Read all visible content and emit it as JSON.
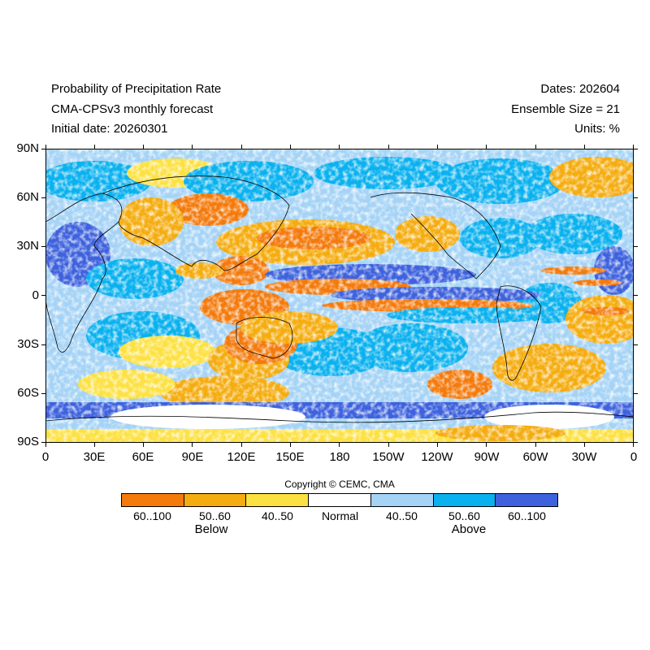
{
  "header": {
    "title": "Probability of Precipitation Rate",
    "model": "CMA-CPSv3 monthly forecast",
    "initial": "Initial date: 20260301",
    "dates": "Dates: 202604",
    "ensemble": "Ensemble Size = 21",
    "units": "Units: %"
  },
  "axes": {
    "lat_labels": [
      "90N",
      "60N",
      "30N",
      "0",
      "30S",
      "60S",
      "90S"
    ],
    "lon_labels": [
      "0",
      "30E",
      "60E",
      "90E",
      "120E",
      "150E",
      "180",
      "150W",
      "120W",
      "90W",
      "60W",
      "30W",
      "0"
    ]
  },
  "copyright": "Copyright © CEMC, CMA",
  "legend": {
    "boxes": [
      {
        "label": "60..100",
        "color": "#f47a0c"
      },
      {
        "label": "50..60",
        "color": "#f5ac0f"
      },
      {
        "label": "40..50",
        "color": "#fde142"
      },
      {
        "label": "Normal",
        "color": "#ffffff"
      },
      {
        "label": "40..50",
        "color": "#a5d3f6"
      },
      {
        "label": "50..60",
        "color": "#0ab1ef"
      },
      {
        "label": "60..100",
        "color": "#3e62dd"
      }
    ],
    "below_label": "Below",
    "above_label": "Above"
  }
}
